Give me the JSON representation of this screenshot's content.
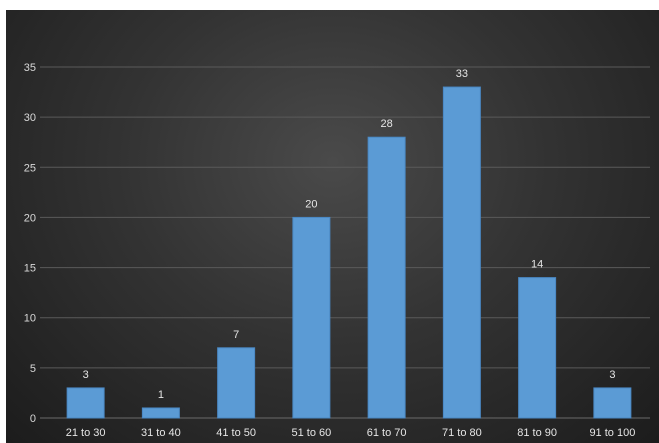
{
  "chart_data": {
    "type": "bar",
    "title": "",
    "xlabel": "",
    "ylabel": "",
    "categories": [
      "21 to 30",
      "31 to 40",
      "41 to 50",
      "51 to 60",
      "61 to 70",
      "71 to 80",
      "81 to 90",
      "91 to 100"
    ],
    "values": [
      3,
      1,
      7,
      20,
      28,
      33,
      14,
      3
    ],
    "ylim": [
      0,
      35
    ],
    "yticks": [
      0,
      5,
      10,
      15,
      20,
      25,
      30,
      35
    ],
    "grid": true,
    "legend": "none",
    "colors": {
      "bar": "#5b9bd5",
      "bar_edge": "#4a88c4",
      "grid": "#5a5a5a",
      "axis_text": "#d9d9d9",
      "background": "#333333"
    }
  }
}
